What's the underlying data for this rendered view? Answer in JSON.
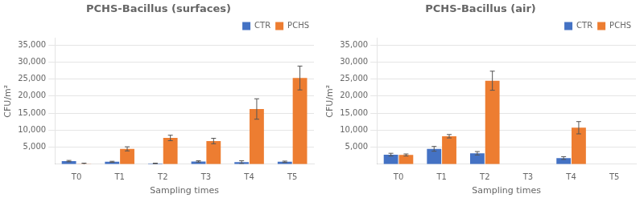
{
  "chart_data": [
    {
      "type": "bar",
      "title": "PCHS-Bacillus (surfaces)",
      "categories": [
        "T0",
        "T1",
        "T2",
        "T3",
        "T4",
        "T5"
      ],
      "series": [
        {
          "name": "CTR",
          "color": "#4472C4",
          "values": [
            900,
            700,
            200,
            800,
            600,
            700
          ],
          "errors": [
            200,
            150,
            100,
            200,
            400,
            200
          ]
        },
        {
          "name": "PCHS",
          "color": "#ED7D31",
          "values": [
            100,
            4500,
            7700,
            6800,
            16200,
            25300
          ],
          "errors": [
            200,
            600,
            800,
            800,
            3000,
            3500
          ]
        }
      ],
      "xlabel": "Sampling times",
      "ylabel": "CFU/m²",
      "ylim": [
        0,
        37000
      ],
      "yticks": [
        {
          "value": 5000,
          "label": "5,000"
        },
        {
          "value": 10000,
          "label": "10,000"
        },
        {
          "value": 15000,
          "label": "15,000"
        },
        {
          "value": 20000,
          "label": "20,000"
        },
        {
          "value": 25000,
          "label": "25,000"
        },
        {
          "value": 30000,
          "label": "30,000"
        },
        {
          "value": 35000,
          "label": "35,000"
        }
      ],
      "grid": true,
      "legend": "upper right"
    },
    {
      "type": "bar",
      "title": "PCHS-Bacillus (air)",
      "categories": [
        "T0",
        "T1",
        "T2",
        "T3",
        "T4",
        "T5"
      ],
      "series": [
        {
          "name": "CTR",
          "color": "#4472C4",
          "values": [
            2800,
            4500,
            3200,
            0,
            1800,
            0
          ],
          "errors": [
            400,
            700,
            500,
            0,
            400,
            0
          ]
        },
        {
          "name": "PCHS",
          "color": "#ED7D31",
          "values": [
            2700,
            8200,
            24500,
            0,
            10700,
            0
          ],
          "errors": [
            300,
            500,
            2800,
            0,
            1800,
            0
          ]
        }
      ],
      "xlabel": "Sampling times",
      "ylabel": "CFU/m²",
      "ylim": [
        0,
        37000
      ],
      "yticks": [
        {
          "value": 5000,
          "label": "5,000"
        },
        {
          "value": 10000,
          "label": "10,000"
        },
        {
          "value": 15000,
          "label": "15,000"
        },
        {
          "value": 20000,
          "label": "20,000"
        },
        {
          "value": 25000,
          "label": "25,000"
        },
        {
          "value": 30000,
          "label": "30,000"
        },
        {
          "value": 35000,
          "label": "35,000"
        }
      ],
      "grid": true,
      "legend": "upper right"
    }
  ]
}
